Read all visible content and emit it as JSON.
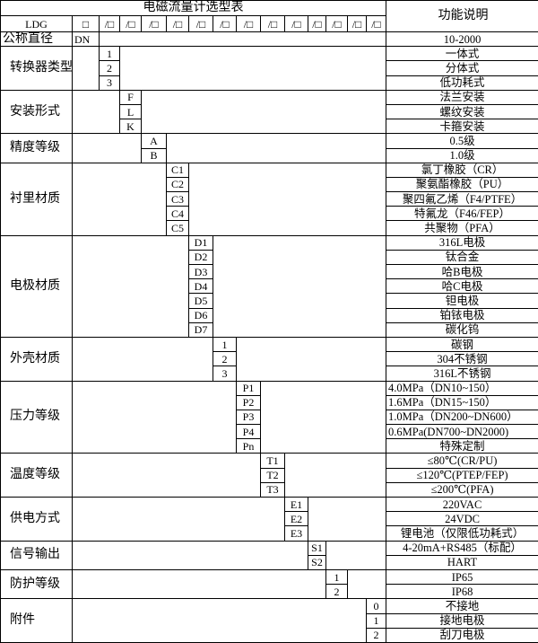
{
  "title": "电磁流量计选型表",
  "function_header": "功能说明",
  "header": {
    "model": "LDG",
    "first_slot": "□",
    "slot": "/□",
    "slot_count": 13
  },
  "dn_row": {
    "label": "公称直径",
    "code": "DN",
    "desc": "10-2000"
  },
  "groups": [
    {
      "label": "转换器类型",
      "col": 2,
      "rows": [
        {
          "code": "1",
          "desc": "一体式"
        },
        {
          "code": "2",
          "desc": "分体式"
        },
        {
          "code": "3",
          "desc": "低功耗式"
        }
      ]
    },
    {
      "label": "安装形式",
      "col": 3,
      "rows": [
        {
          "code": "F",
          "desc": "法兰安装"
        },
        {
          "code": "L",
          "desc": "螺纹安装"
        },
        {
          "code": "K",
          "desc": "卡箍安装"
        }
      ]
    },
    {
      "label": "精度等级",
      "col": 4,
      "rows": [
        {
          "code": "A",
          "desc": "0.5级"
        },
        {
          "code": "B",
          "desc": "1.0级"
        }
      ]
    },
    {
      "label": "衬里材质",
      "col": 5,
      "rows": [
        {
          "code": "C1",
          "desc": "氯丁橡胶（CR）"
        },
        {
          "code": "C2",
          "desc": "聚氨酯橡胶（PU）"
        },
        {
          "code": "C3",
          "desc": "聚四氟乙烯（F4/PTFE）"
        },
        {
          "code": "C4",
          "desc": "特氟龙（F46/FEP）"
        },
        {
          "code": "C5",
          "desc": "共聚物（PFA）"
        }
      ]
    },
    {
      "label": "电极材质",
      "col": 6,
      "rows": [
        {
          "code": "D1",
          "desc": "316L电极"
        },
        {
          "code": "D2",
          "desc": "钛合金"
        },
        {
          "code": "D3",
          "desc": "哈B电极"
        },
        {
          "code": "D4",
          "desc": "哈C电极"
        },
        {
          "code": "D5",
          "desc": "钽电极"
        },
        {
          "code": "D6",
          "desc": "铂铱电极"
        },
        {
          "code": "D7",
          "desc": "碳化钨"
        }
      ]
    },
    {
      "label": "外壳材质",
      "col": 7,
      "rows": [
        {
          "code": "1",
          "desc": "碳钢"
        },
        {
          "code": "2",
          "desc": "304不锈钢"
        },
        {
          "code": "3",
          "desc": "316L不锈钢"
        }
      ]
    },
    {
      "label": "压力等级",
      "col": 8,
      "rows": [
        {
          "code": "P1",
          "desc": "4.0MPa（DN10~150）",
          "left": true
        },
        {
          "code": "P2",
          "desc": "1.6MPa（DN15~150）",
          "left": true
        },
        {
          "code": "P3",
          "desc": "1.0MPa（DN200~DN600）",
          "left": true
        },
        {
          "code": "P4",
          "desc": "0.6MPa(DN700~DN2000)",
          "left": true
        },
        {
          "code": "Pn",
          "desc": "特殊定制"
        }
      ]
    },
    {
      "label": "温度等级",
      "col": 9,
      "rows": [
        {
          "code": "T1",
          "desc": "≤80℃(CR/PU)"
        },
        {
          "code": "T2",
          "desc": "≤120℃(PTEP/FEP)"
        },
        {
          "code": "T3",
          "desc": "≤200℃(PFA)"
        }
      ]
    },
    {
      "label": "供电方式",
      "col": 10,
      "rows": [
        {
          "code": "E1",
          "desc": "220VAC"
        },
        {
          "code": "E2",
          "desc": "24VDC"
        },
        {
          "code": "E3",
          "desc": "锂电池（仅限低功耗式）"
        }
      ]
    },
    {
      "label": "信号输出",
      "col": 11,
      "rows": [
        {
          "code": "S1",
          "desc": "4-20mA+RS485（标配）"
        },
        {
          "code": "S2",
          "desc": "HART"
        }
      ]
    },
    {
      "label": "防护等级",
      "col": 12,
      "rows": [
        {
          "code": "1",
          "desc": "IP65"
        },
        {
          "code": "2",
          "desc": "IP68"
        }
      ]
    },
    {
      "label": "附件",
      "col": 14,
      "rows": [
        {
          "code": "0",
          "desc": "不接地"
        },
        {
          "code": "1",
          "desc": "接地电极"
        },
        {
          "code": "2",
          "desc": "刮刀电极"
        }
      ]
    }
  ]
}
